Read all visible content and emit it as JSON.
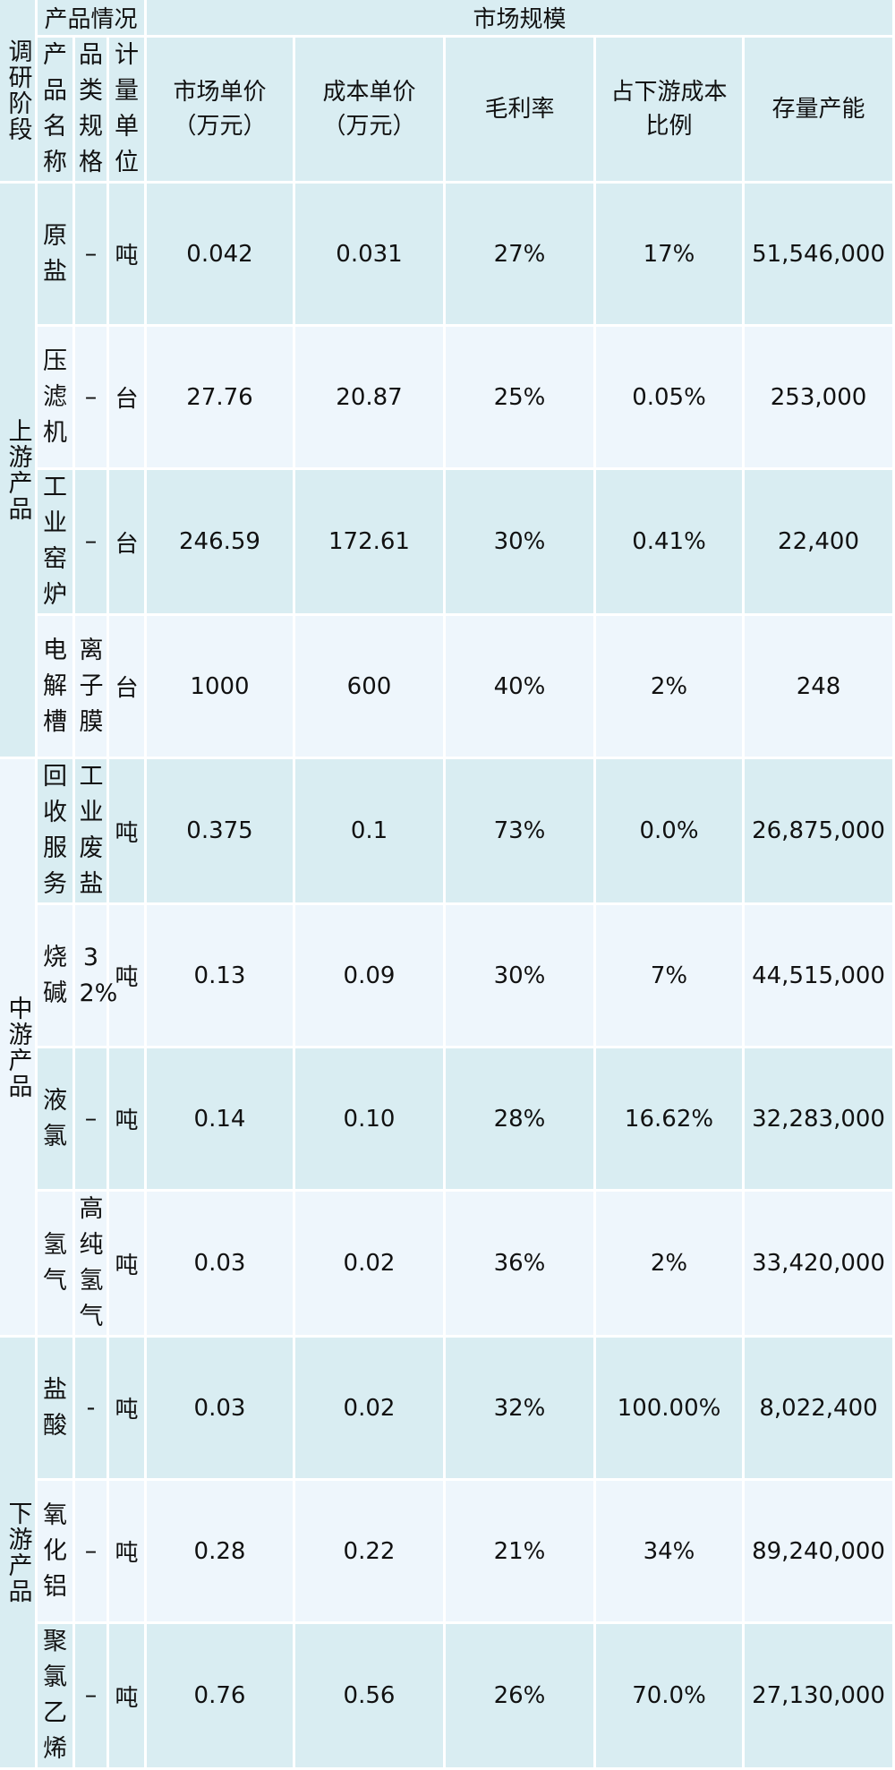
{
  "header": {
    "stage": "调研阶段",
    "product_info": "产品情况",
    "market_scale": "市场规模",
    "product_name": "产品名称",
    "category_spec": "品类规格",
    "unit": "计量单位",
    "market_price": "市场单价（万元）",
    "cost_price": "成本单价（万元）",
    "gross_margin": "毛利率",
    "downstream_cost_ratio": "占下游成本比例",
    "capacity": "存量产能"
  },
  "stages": {
    "upstream": "上游产品",
    "midstream": "中游产品",
    "downstream": "下游产品"
  },
  "rows": [
    {
      "name": "原盐",
      "spec": "–",
      "unit": "吨",
      "market_price": "0.042",
      "cost_price": "0.031",
      "gross_margin": "27%",
      "ratio": "17%",
      "capacity": "51,546,000"
    },
    {
      "name": "压滤机",
      "spec": "–",
      "unit": "台",
      "market_price": "27.76",
      "cost_price": "20.87",
      "gross_margin": "25%",
      "ratio": "0.05%",
      "capacity": "253,000"
    },
    {
      "name": "工业窑炉",
      "spec": "–",
      "unit": "台",
      "market_price": "246.59",
      "cost_price": "172.61",
      "gross_margin": "30%",
      "ratio": "0.41%",
      "capacity": "22,400"
    },
    {
      "name": "电解槽",
      "spec": "离子膜",
      "unit": "台",
      "market_price": "1000",
      "cost_price": "600",
      "gross_margin": "40%",
      "ratio": "2%",
      "capacity": "248"
    },
    {
      "name": "回收服务",
      "spec": "工业废盐",
      "unit": "吨",
      "market_price": "0.375",
      "cost_price": "0.1",
      "gross_margin": "73%",
      "ratio": "0.0%",
      "capacity": "26,875,000"
    },
    {
      "name": "烧碱",
      "spec": "32%",
      "unit": "吨",
      "market_price": "0.13",
      "cost_price": "0.09",
      "gross_margin": "30%",
      "ratio": "7%",
      "capacity": "44,515,000"
    },
    {
      "name": "液氯",
      "spec": "–",
      "unit": "吨",
      "market_price": "0.14",
      "cost_price": "0.10",
      "gross_margin": "28%",
      "ratio": "16.62%",
      "capacity": "32,283,000"
    },
    {
      "name": "氢气",
      "spec": "高纯氢气",
      "unit": "吨",
      "market_price": "0.03",
      "cost_price": "0.02",
      "gross_margin": "36%",
      "ratio": "2%",
      "capacity": "33,420,000"
    },
    {
      "name": "盐酸",
      "spec": "-",
      "unit": "吨",
      "market_price": "0.03",
      "cost_price": "0.02",
      "gross_margin": "32%",
      "ratio": "100.00%",
      "capacity": "8,022,400"
    },
    {
      "name": "氧化铝",
      "spec": "–",
      "unit": "吨",
      "market_price": "0.28",
      "cost_price": "0.22",
      "gross_margin": "21%",
      "ratio": "34%",
      "capacity": "89,240,000"
    },
    {
      "name": "聚氯乙烯",
      "spec": "–",
      "unit": "吨",
      "market_price": "0.76",
      "cost_price": "0.56",
      "gross_margin": "26%",
      "ratio": "70.0%",
      "capacity": "27,130,000"
    }
  ]
}
